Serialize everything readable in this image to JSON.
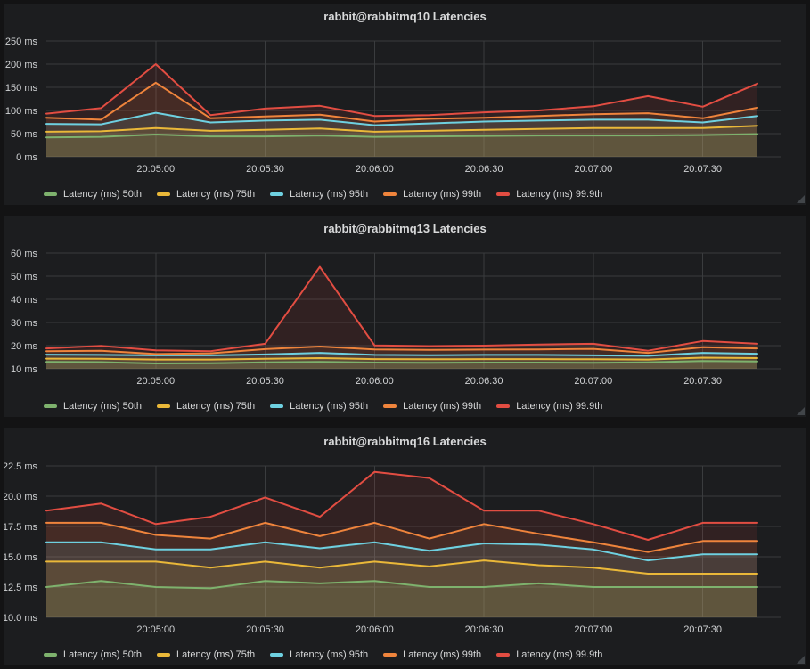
{
  "theme": {
    "page_background": "#131314",
    "panel_background": "#1c1d1f",
    "grid_color": "#3a3c3e",
    "text_color": "#d0d2d4",
    "title_color": "#d8d9da",
    "fill_opacity": 0.11
  },
  "chart_data": [
    {
      "type": "area",
      "title": "rabbit@rabbitmq10 Latencies",
      "xlabel": "",
      "ylabel": "",
      "ylim": [
        0,
        250
      ],
      "grid": true,
      "legend_position": "bottom",
      "y_ticks": [
        {
          "value": 0,
          "label": "0 ms"
        },
        {
          "value": 50,
          "label": "50 ms"
        },
        {
          "value": 100,
          "label": "100 ms"
        },
        {
          "value": 150,
          "label": "150 ms"
        },
        {
          "value": 200,
          "label": "200 ms"
        },
        {
          "value": 250,
          "label": "250 ms"
        }
      ],
      "x_ticks": [
        "20:05:00",
        "20:05:30",
        "20:06:00",
        "20:06:30",
        "20:07:00",
        "20:07:30"
      ],
      "x": [
        "20:04:30",
        "20:04:45",
        "20:05:00",
        "20:05:15",
        "20:05:30",
        "20:05:45",
        "20:06:00",
        "20:06:15",
        "20:06:30",
        "20:06:45",
        "20:07:00",
        "20:07:15",
        "20:07:30",
        "20:07:45"
      ],
      "series": [
        {
          "name": "Latency (ms) 50th",
          "color": "#7eb26d",
          "values": [
            42,
            43,
            48,
            44,
            44,
            46,
            43,
            44,
            45,
            46,
            46,
            46,
            47,
            49
          ]
        },
        {
          "name": "Latency (ms) 75th",
          "color": "#eab839",
          "values": [
            54,
            55,
            62,
            56,
            58,
            61,
            54,
            56,
            58,
            60,
            62,
            62,
            62,
            67
          ]
        },
        {
          "name": "Latency (ms) 95th",
          "color": "#6ed0e0",
          "values": [
            71,
            70,
            95,
            74,
            78,
            80,
            68,
            72,
            76,
            78,
            80,
            80,
            74,
            88
          ]
        },
        {
          "name": "Latency (ms) 99th",
          "color": "#ef843c",
          "values": [
            84,
            80,
            160,
            83,
            87,
            91,
            76,
            82,
            84,
            88,
            92,
            94,
            83,
            106
          ]
        },
        {
          "name": "Latency (ms) 99.9th",
          "color": "#e24d42",
          "values": [
            93,
            105,
            200,
            90,
            104,
            110,
            88,
            90,
            96,
            100,
            109,
            131,
            108,
            158
          ]
        }
      ]
    },
    {
      "type": "area",
      "title": "rabbit@rabbitmq13 Latencies",
      "xlabel": "",
      "ylabel": "",
      "ylim": [
        10,
        60
      ],
      "grid": true,
      "legend_position": "bottom",
      "y_ticks": [
        {
          "value": 10,
          "label": "10 ms"
        },
        {
          "value": 20,
          "label": "20 ms"
        },
        {
          "value": 30,
          "label": "30 ms"
        },
        {
          "value": 40,
          "label": "40 ms"
        },
        {
          "value": 50,
          "label": "50 ms"
        },
        {
          "value": 60,
          "label": "60 ms"
        }
      ],
      "x_ticks": [
        "20:05:00",
        "20:05:30",
        "20:06:00",
        "20:06:30",
        "20:07:00",
        "20:07:30"
      ],
      "x": [
        "20:04:30",
        "20:04:45",
        "20:05:00",
        "20:05:15",
        "20:05:30",
        "20:05:45",
        "20:06:00",
        "20:06:15",
        "20:06:30",
        "20:06:45",
        "20:07:00",
        "20:07:15",
        "20:07:30",
        "20:07:45"
      ],
      "series": [
        {
          "name": "Latency (ms) 50th",
          "color": "#7eb26d",
          "values": [
            13.0,
            12.9,
            12.3,
            12.4,
            12.8,
            13.0,
            12.7,
            12.6,
            12.7,
            12.7,
            12.6,
            12.8,
            13.4,
            13.2
          ]
        },
        {
          "name": "Latency (ms) 75th",
          "color": "#eab839",
          "values": [
            14.4,
            14.3,
            14.0,
            14.0,
            14.3,
            14.6,
            14.2,
            14.1,
            14.2,
            14.2,
            14.1,
            14.0,
            14.8,
            14.6
          ]
        },
        {
          "name": "Latency (ms) 95th",
          "color": "#6ed0e0",
          "values": [
            16.1,
            16.0,
            15.8,
            15.8,
            16.2,
            16.9,
            16.0,
            15.9,
            16.0,
            16.0,
            15.8,
            15.6,
            16.9,
            16.5
          ]
        },
        {
          "name": "Latency (ms) 99th",
          "color": "#ef843c",
          "values": [
            17.6,
            17.8,
            16.4,
            16.7,
            18.5,
            19.6,
            18.4,
            18.2,
            18.3,
            18.4,
            18.6,
            16.9,
            19.3,
            18.8
          ]
        },
        {
          "name": "Latency (ms) 99.9th",
          "color": "#e24d42",
          "values": [
            18.8,
            19.9,
            18.0,
            17.6,
            20.8,
            54.0,
            20.1,
            19.8,
            20.0,
            20.5,
            20.8,
            17.8,
            22.0,
            20.8
          ]
        }
      ]
    },
    {
      "type": "area",
      "title": "rabbit@rabbitmq16 Latencies",
      "xlabel": "",
      "ylabel": "",
      "ylim": [
        10,
        22.5
      ],
      "grid": true,
      "legend_position": "bottom",
      "y_ticks": [
        {
          "value": 10,
          "label": "10.0 ms"
        },
        {
          "value": 12.5,
          "label": "12.5 ms"
        },
        {
          "value": 15,
          "label": "15.0 ms"
        },
        {
          "value": 17.5,
          "label": "17.5 ms"
        },
        {
          "value": 20,
          "label": "20.0 ms"
        },
        {
          "value": 22.5,
          "label": "22.5 ms"
        }
      ],
      "x_ticks": [
        "20:05:00",
        "20:05:30",
        "20:06:00",
        "20:06:30",
        "20:07:00",
        "20:07:30"
      ],
      "x": [
        "20:04:30",
        "20:04:45",
        "20:05:00",
        "20:05:15",
        "20:05:30",
        "20:05:45",
        "20:06:00",
        "20:06:15",
        "20:06:30",
        "20:06:45",
        "20:07:00",
        "20:07:15",
        "20:07:30",
        "20:07:45"
      ],
      "series": [
        {
          "name": "Latency (ms) 50th",
          "color": "#7eb26d",
          "values": [
            12.5,
            13.0,
            12.5,
            12.4,
            13.0,
            12.8,
            13.0,
            12.5,
            12.5,
            12.8,
            12.5,
            12.5,
            12.5,
            12.5
          ]
        },
        {
          "name": "Latency (ms) 75th",
          "color": "#eab839",
          "values": [
            14.6,
            14.6,
            14.6,
            14.1,
            14.6,
            14.1,
            14.6,
            14.2,
            14.7,
            14.3,
            14.1,
            13.6,
            13.6,
            13.6
          ]
        },
        {
          "name": "Latency (ms) 95th",
          "color": "#6ed0e0",
          "values": [
            16.2,
            16.2,
            15.6,
            15.6,
            16.2,
            15.7,
            16.2,
            15.5,
            16.1,
            16.0,
            15.6,
            14.7,
            15.2,
            15.2
          ]
        },
        {
          "name": "Latency (ms) 99th",
          "color": "#ef843c",
          "values": [
            17.8,
            17.8,
            16.8,
            16.5,
            17.8,
            16.7,
            17.8,
            16.5,
            17.7,
            16.9,
            16.2,
            15.4,
            16.3,
            16.3
          ]
        },
        {
          "name": "Latency (ms) 99.9th",
          "color": "#e24d42",
          "values": [
            18.8,
            19.4,
            17.7,
            18.3,
            19.9,
            18.3,
            22.0,
            21.5,
            18.8,
            18.8,
            17.7,
            16.4,
            17.8,
            17.8
          ]
        }
      ]
    }
  ]
}
